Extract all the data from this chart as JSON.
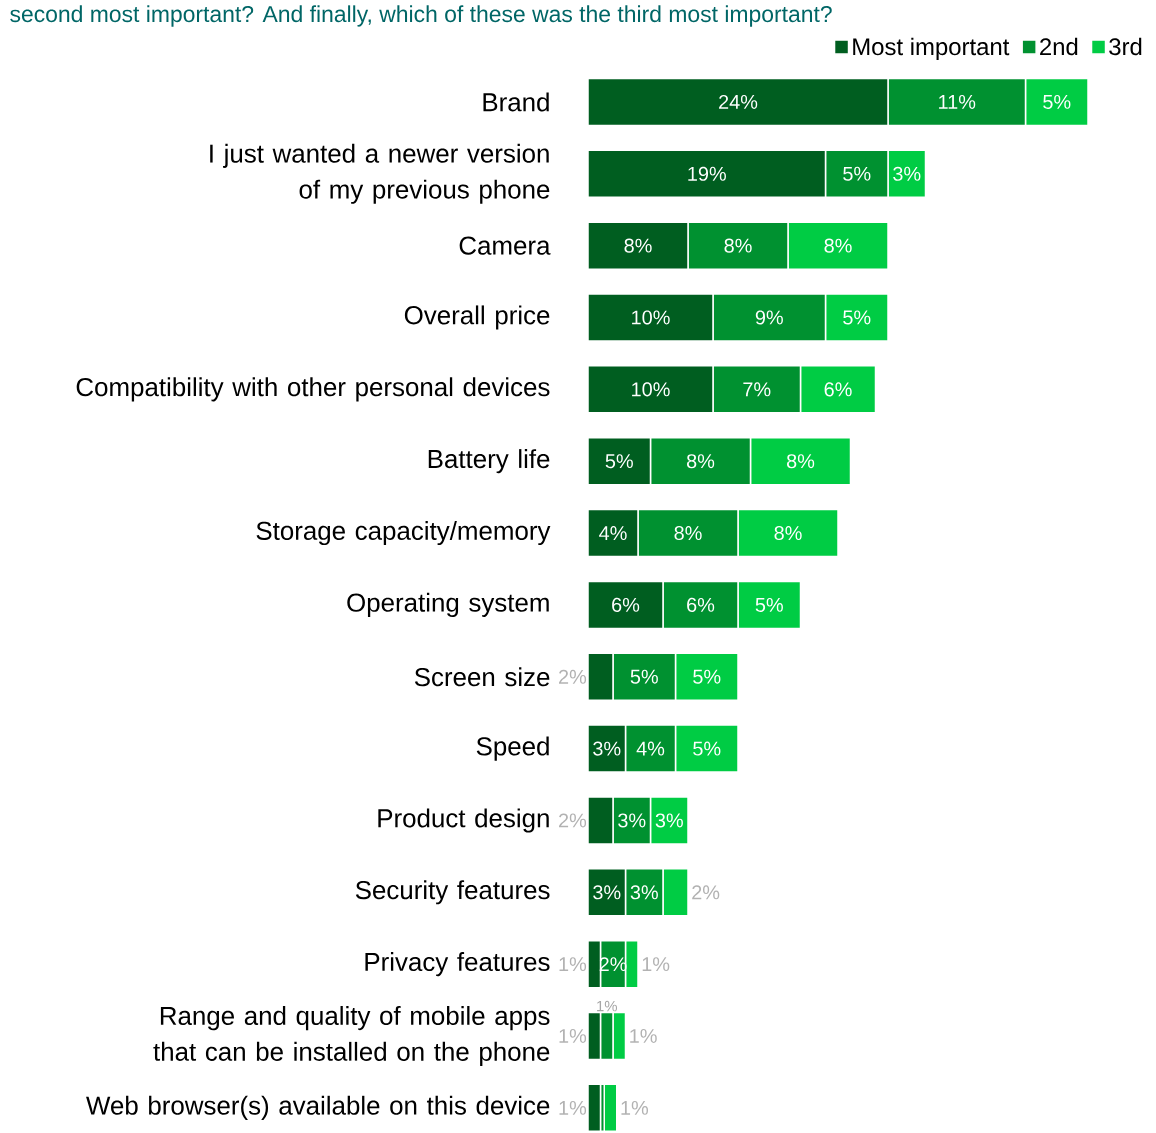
{
  "chart_data": {
    "type": "bar",
    "orientation": "horizontal",
    "stacked": true,
    "legend": "top right",
    "title": "second most important? And finally, which of these was the third most important?",
    "categories": [
      "Brand",
      "I just wanted a newer version of my previous phone",
      "Camera",
      "Overall price",
      "Compatibility with other personal devices",
      "Battery life",
      "Storage capacity/memory",
      "Operating system",
      "Screen size",
      "Speed",
      "Product design",
      "Security features",
      "Privacy features",
      "Range and quality of mobile apps that can be installed on the phone",
      "Web browser(s) available on this device"
    ],
    "series": [
      {
        "name": "Most important",
        "color": "#005e20",
        "values": [
          24,
          19,
          8,
          10,
          10,
          5,
          4,
          6,
          2,
          3,
          2,
          3,
          1,
          1,
          1
        ],
        "value_labels": [
          "24%",
          "19%",
          "8%",
          "10%",
          "10%",
          "5%",
          "4%",
          "6%",
          "2%",
          "3%",
          "2%",
          "3%",
          "1%",
          "1%",
          "1%"
        ]
      },
      {
        "name": "2nd",
        "color": "#009130",
        "values": [
          11,
          5,
          8,
          9,
          7,
          8,
          8,
          6,
          5,
          4,
          3,
          3,
          2,
          1,
          0.3
        ],
        "value_labels": [
          "11%",
          "5%",
          "8%",
          "9%",
          "7%",
          "8%",
          "8%",
          "6%",
          "5%",
          "4%",
          "3%",
          "3%",
          "2%",
          "1%",
          null
        ]
      },
      {
        "name": "3rd",
        "color": "#00cc44",
        "values": [
          5,
          3,
          8,
          5,
          6,
          8,
          8,
          5,
          5,
          5,
          3,
          2,
          1,
          1,
          1
        ],
        "value_labels": [
          "5%",
          "3%",
          "8%",
          "5%",
          "6%",
          "8%",
          "8%",
          "5%",
          "5%",
          "5%",
          "3%",
          "2%",
          "1%",
          "1%",
          "1%"
        ]
      }
    ]
  }
}
